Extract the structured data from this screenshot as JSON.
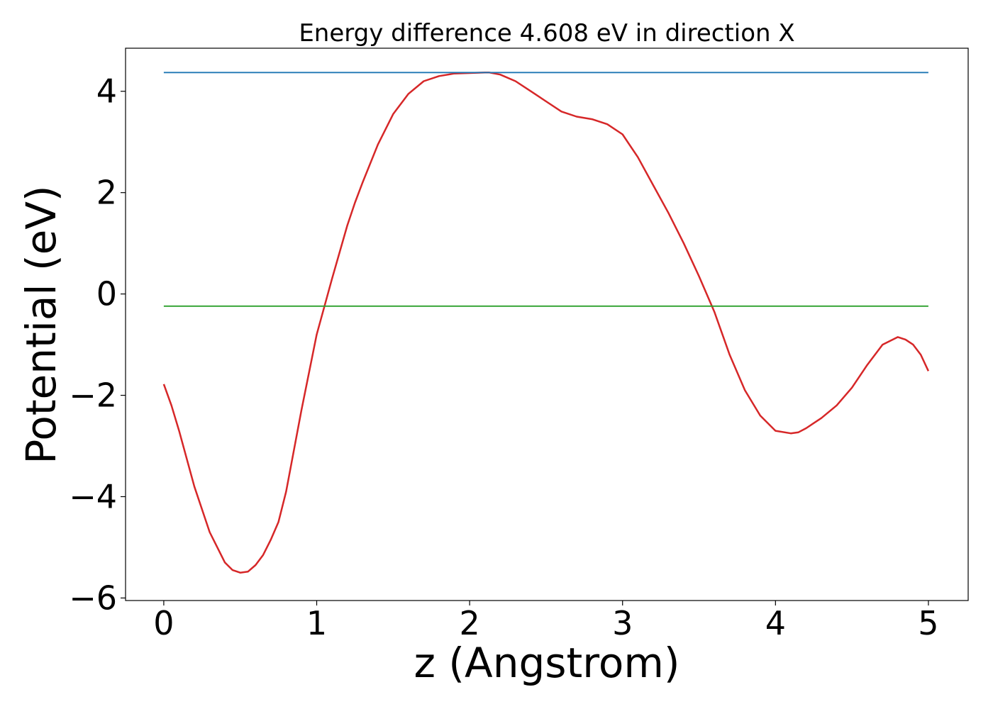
{
  "chart_data": {
    "type": "line",
    "title": "Energy difference 4.608 eV in direction X",
    "xlabel": "z (Angstrom)",
    "ylabel": "Potential (eV)",
    "xlim": [
      -0.25,
      5.26
    ],
    "ylim": [
      -6.05,
      4.85
    ],
    "xticks": [
      0,
      1,
      2,
      3,
      4,
      5
    ],
    "xtick_labels": [
      "0",
      "1",
      "2",
      "3",
      "4",
      "5"
    ],
    "yticks": [
      -6,
      -4,
      -2,
      0,
      2,
      4
    ],
    "ytick_labels": [
      "−6",
      "−4",
      "−2",
      "0",
      "2",
      "4"
    ],
    "grid": false,
    "series": [
      {
        "color": "#d62728",
        "x": [
          0,
          0.05,
          0.1,
          0.2,
          0.3,
          0.4,
          0.45,
          0.5,
          0.55,
          0.6,
          0.65,
          0.7,
          0.75,
          0.8,
          0.9,
          1.0,
          1.1,
          1.2,
          1.25,
          1.3,
          1.4,
          1.5,
          1.6,
          1.7,
          1.8,
          1.9,
          2.0,
          2.1,
          2.13,
          2.2,
          2.3,
          2.4,
          2.5,
          2.6,
          2.7,
          2.8,
          2.9,
          3.0,
          3.1,
          3.2,
          3.3,
          3.4,
          3.5,
          3.6,
          3.7,
          3.8,
          3.9,
          4.0,
          4.1,
          4.15,
          4.2,
          4.3,
          4.4,
          4.5,
          4.6,
          4.7,
          4.8,
          4.85,
          4.9,
          4.95,
          5.0
        ],
        "y": [
          -1.78,
          -2.2,
          -2.7,
          -3.8,
          -4.7,
          -5.3,
          -5.45,
          -5.5,
          -5.48,
          -5.35,
          -5.15,
          -4.85,
          -4.5,
          -3.9,
          -2.3,
          -0.8,
          0.3,
          1.35,
          1.8,
          2.2,
          2.95,
          3.55,
          3.95,
          4.2,
          4.3,
          4.35,
          4.36,
          4.37,
          4.37,
          4.33,
          4.2,
          4.0,
          3.8,
          3.6,
          3.5,
          3.45,
          3.35,
          3.15,
          2.7,
          2.15,
          1.6,
          1.0,
          0.35,
          -0.35,
          -1.2,
          -1.9,
          -2.4,
          -2.7,
          -2.75,
          -2.73,
          -2.65,
          -2.45,
          -2.2,
          -1.85,
          -1.4,
          -1.0,
          -0.85,
          -0.9,
          -1.0,
          -1.2,
          -1.52
        ]
      },
      {
        "color": "#1f77b4",
        "x": [
          0,
          5
        ],
        "y": [
          4.37,
          4.37
        ]
      },
      {
        "color": "#2ca02c",
        "x": [
          0,
          5
        ],
        "y": [
          -0.24,
          -0.24
        ]
      }
    ]
  }
}
